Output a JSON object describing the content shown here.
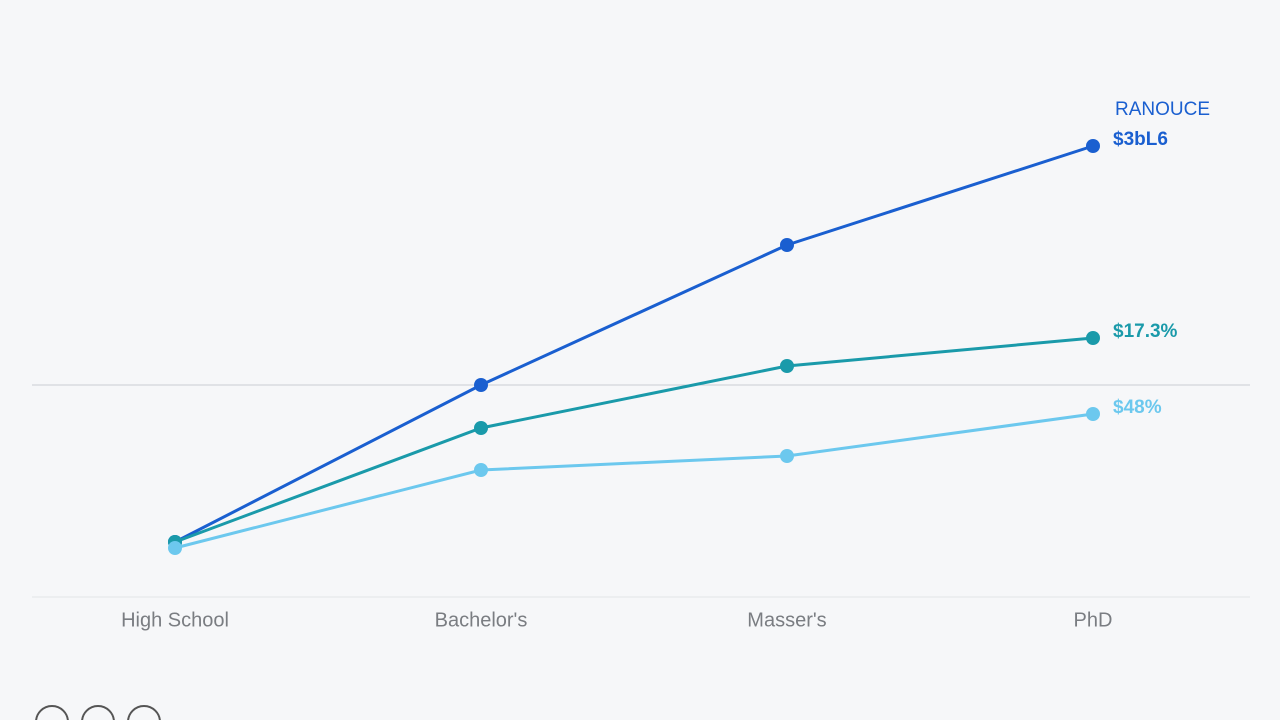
{
  "chart_data": {
    "type": "line",
    "categories": [
      "High School",
      "Bachelor's",
      "Masser's",
      "PhD"
    ],
    "series": [
      {
        "color": "#1a5fd0",
        "values": [
          11,
          42.4,
          70.4,
          90.2
        ],
        "end_label": "$3bL6"
      },
      {
        "color": "#1a9aaa",
        "values": [
          11,
          33.8,
          46.2,
          51.8
        ],
        "end_label": "$17.3%"
      },
      {
        "color": "#6cc8ee",
        "values": [
          9.8,
          25.4,
          28.2,
          36.6
        ],
        "end_label": "$48%"
      }
    ],
    "annotations": [
      "RANOUCE"
    ],
    "ylim": [
      0,
      100
    ]
  }
}
